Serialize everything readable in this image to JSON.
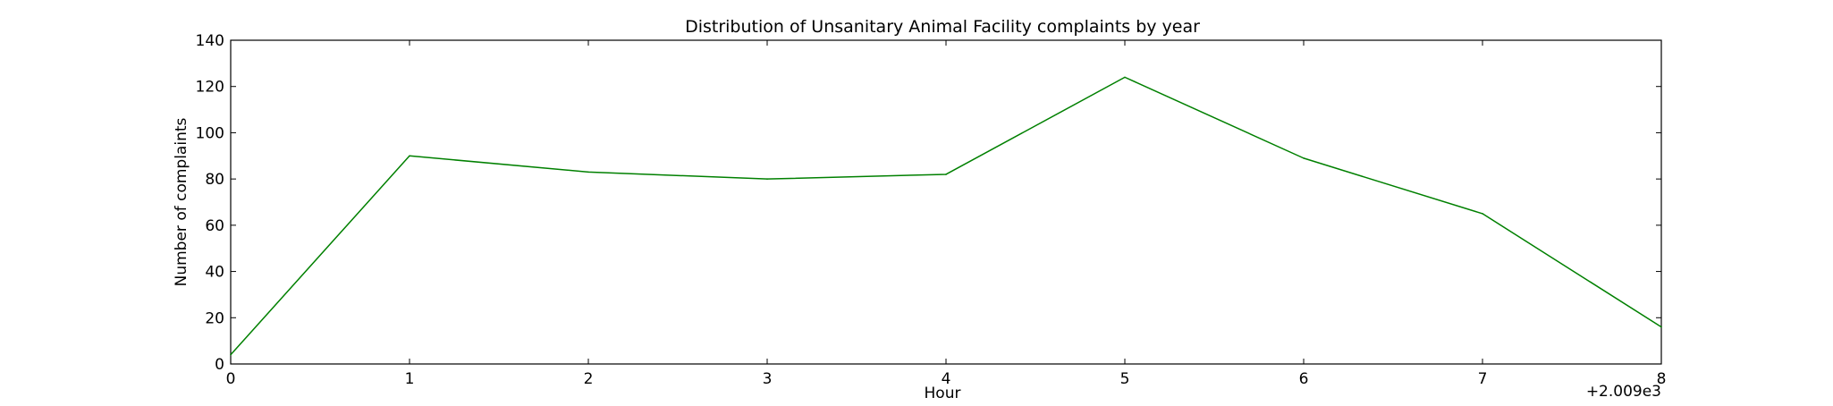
{
  "chart_data": {
    "type": "line",
    "title": "Distribution of  Unsanitary Animal Facility complaints by year",
    "xlabel": "Hour",
    "ylabel": "Number of complaints",
    "x_offset_label": "+2.009e3",
    "x": [
      0,
      1,
      2,
      3,
      4,
      5,
      6,
      7,
      8
    ],
    "series": [
      {
        "values": [
          4,
          90,
          83,
          80,
          82,
          124,
          89,
          65,
          16
        ],
        "color": "#008000"
      }
    ],
    "xlim": [
      0,
      8
    ],
    "ylim": [
      0,
      140
    ],
    "x_ticks": [
      "0",
      "1",
      "2",
      "3",
      "4",
      "5",
      "6",
      "7",
      "8"
    ],
    "y_ticks": [
      "0",
      "20",
      "40",
      "60",
      "80",
      "100",
      "120",
      "140"
    ],
    "grid": false,
    "legend": "none"
  }
}
